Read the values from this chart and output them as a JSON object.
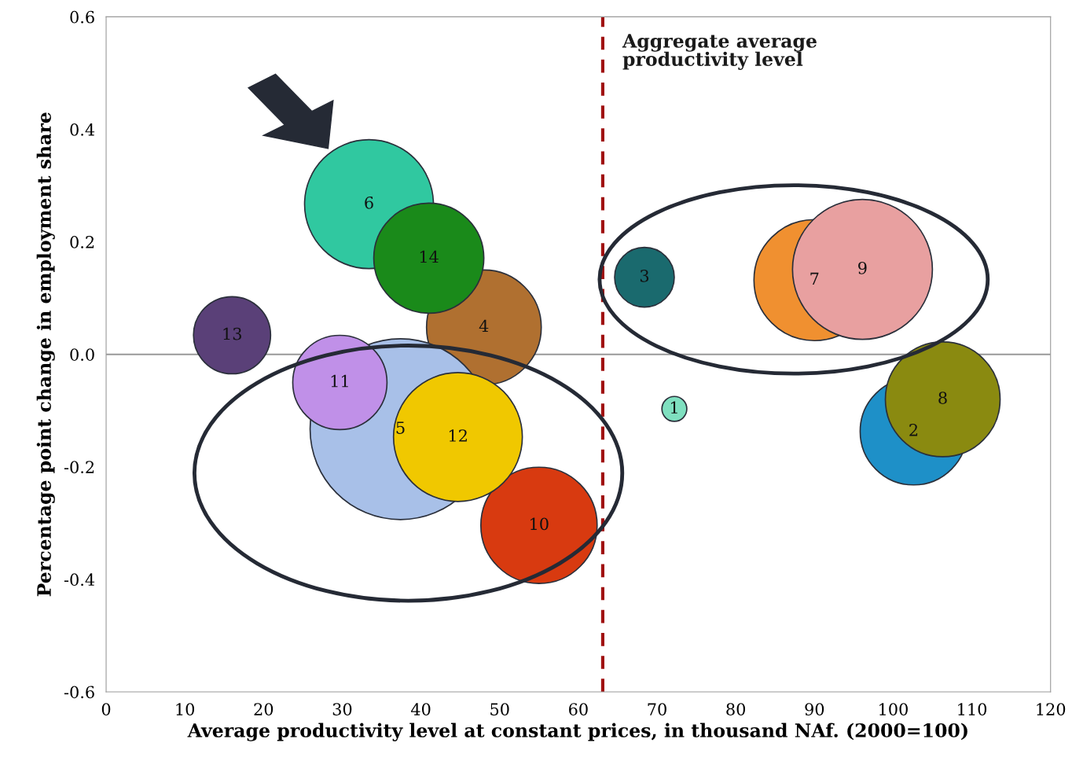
{
  "chart_data": {
    "type": "bubble",
    "xlabel": "Average productivity level at constant prices, in thousand NAf. (2000=100)",
    "ylabel": "Percentage point change in employment share",
    "xlim": [
      0,
      120
    ],
    "xticks": [
      0,
      10,
      20,
      30,
      40,
      50,
      60,
      70,
      80,
      90,
      100,
      110,
      120
    ],
    "ylim": [
      -0.6,
      0.6
    ],
    "yticks": [
      {
        "value": -0.6,
        "label": "-0.6"
      },
      {
        "value": -0.4,
        "label": "-0.4"
      },
      {
        "value": -0.2,
        "label": "-0.2"
      },
      {
        "value": 0,
        "label": "0.0"
      },
      0.2,
      0.4,
      0.6
    ],
    "grid": false,
    "series": [
      {
        "x": [
          72.2,
          102.6,
          68.4,
          48.0,
          37.4,
          33.4,
          90.0,
          106.3,
          96.1,
          55.0,
          29.7,
          44.7,
          16.0,
          41.0
        ],
        "values": [
          -0.097,
          -0.137,
          0.137,
          0.048,
          -0.133,
          0.267,
          0.132,
          -0.08,
          0.151,
          -0.304,
          -0.05,
          -0.147,
          0.034,
          0.171
        ],
        "sizes": [
          0.019,
          0.35,
          0.109,
          0.403,
          1,
          0.508,
          0.448,
          0.403,
          0.599,
          0.414,
          0.272,
          0.508,
          0.182,
          0.371
        ],
        "colors": [
          "#7fe0c0",
          "#1e90c8",
          "#1a6a6e",
          "#b07030",
          "#a8c0e8",
          "#30c8a0",
          "#f09030",
          "#8a8a10",
          "#e8a0a0",
          "#d83a10",
          "#c090e8",
          "#f0c800",
          "#5a4078",
          "#1a8a1a"
        ]
      }
    ],
    "ref_lines": [
      {
        "axis": "x",
        "value": 63.1,
        "label": "Aggregate average\nproductivity level",
        "color": "#a01010",
        "line_style": "dashed"
      },
      {
        "axis": "y",
        "value": 0,
        "color": "#999999",
        "line_style": "solid"
      }
    ],
    "annotations": [
      {
        "text": "1",
        "x": 72.2,
        "y": -0.097
      },
      {
        "text": "2",
        "x": 102.6,
        "y": -0.137
      },
      {
        "text": "3",
        "x": 68.4,
        "y": 0.137
      },
      {
        "text": "4",
        "x": 48.0,
        "y": 0.048
      },
      {
        "text": "5",
        "x": 37.4,
        "y": -0.133
      },
      {
        "text": "6",
        "x": 33.4,
        "y": 0.267
      },
      {
        "text": "7",
        "x": 90.0,
        "y": 0.132
      },
      {
        "text": "8",
        "x": 106.3,
        "y": -0.08
      },
      {
        "text": "9",
        "x": 96.1,
        "y": 0.151
      },
      {
        "text": "10",
        "x": 55.0,
        "y": -0.304
      },
      {
        "text": "11",
        "x": 29.7,
        "y": -0.05
      },
      {
        "text": "12",
        "x": 44.7,
        "y": -0.147
      },
      {
        "text": "13",
        "x": 16.0,
        "y": 0.034
      },
      {
        "text": "14",
        "x": 41.0,
        "y": 0.171
      }
    ]
  }
}
